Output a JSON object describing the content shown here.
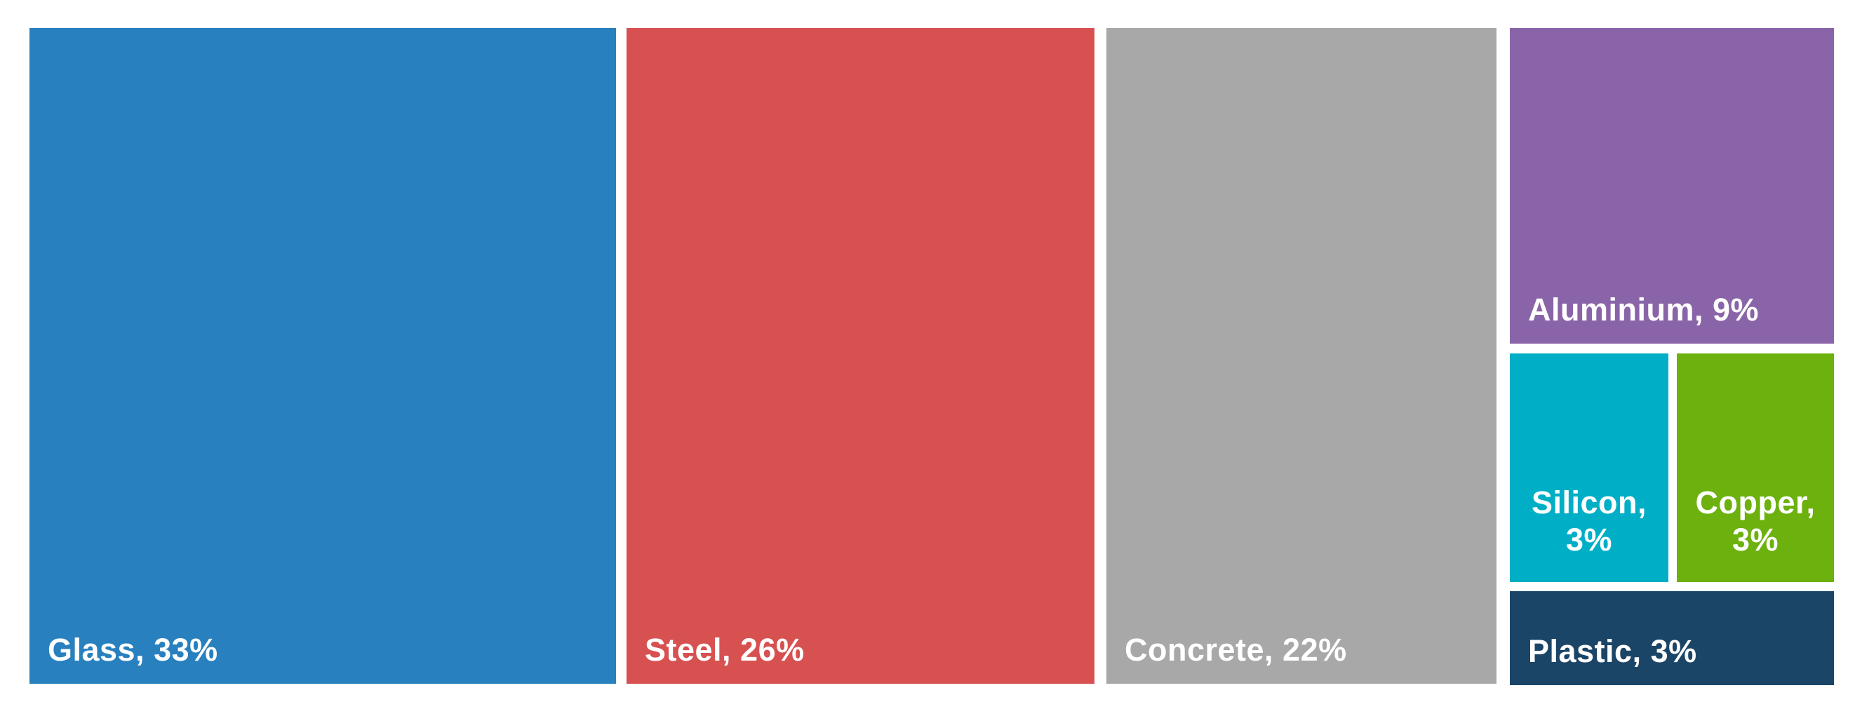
{
  "chart_data": {
    "type": "treemap",
    "title": "",
    "unit": "%",
    "background": "#FFFFFF",
    "label_color": "#FFFFFF",
    "legend": "none",
    "items": [
      {
        "name": "Glass",
        "value": 33,
        "label": "Glass, 33%",
        "color": "#2880BE"
      },
      {
        "name": "Steel",
        "value": 26,
        "label": "Steel, 26%",
        "color": "#D75151"
      },
      {
        "name": "Concrete",
        "value": 22,
        "label": "Concrete, 22%",
        "color": "#A8A8A8"
      },
      {
        "name": "Aluminium",
        "value": 9,
        "label": "Aluminium, 9%",
        "color": "#8A64A8"
      },
      {
        "name": "Silicon",
        "value": 3,
        "label": "Silicon, 3%",
        "color": "#00AEC6"
      },
      {
        "name": "Copper",
        "value": 3,
        "label": "Copper, 3%",
        "color": "#6CB10E"
      },
      {
        "name": "Plastic",
        "value": 3,
        "label": "Plastic, 3%",
        "color": "#1B4567"
      }
    ]
  }
}
